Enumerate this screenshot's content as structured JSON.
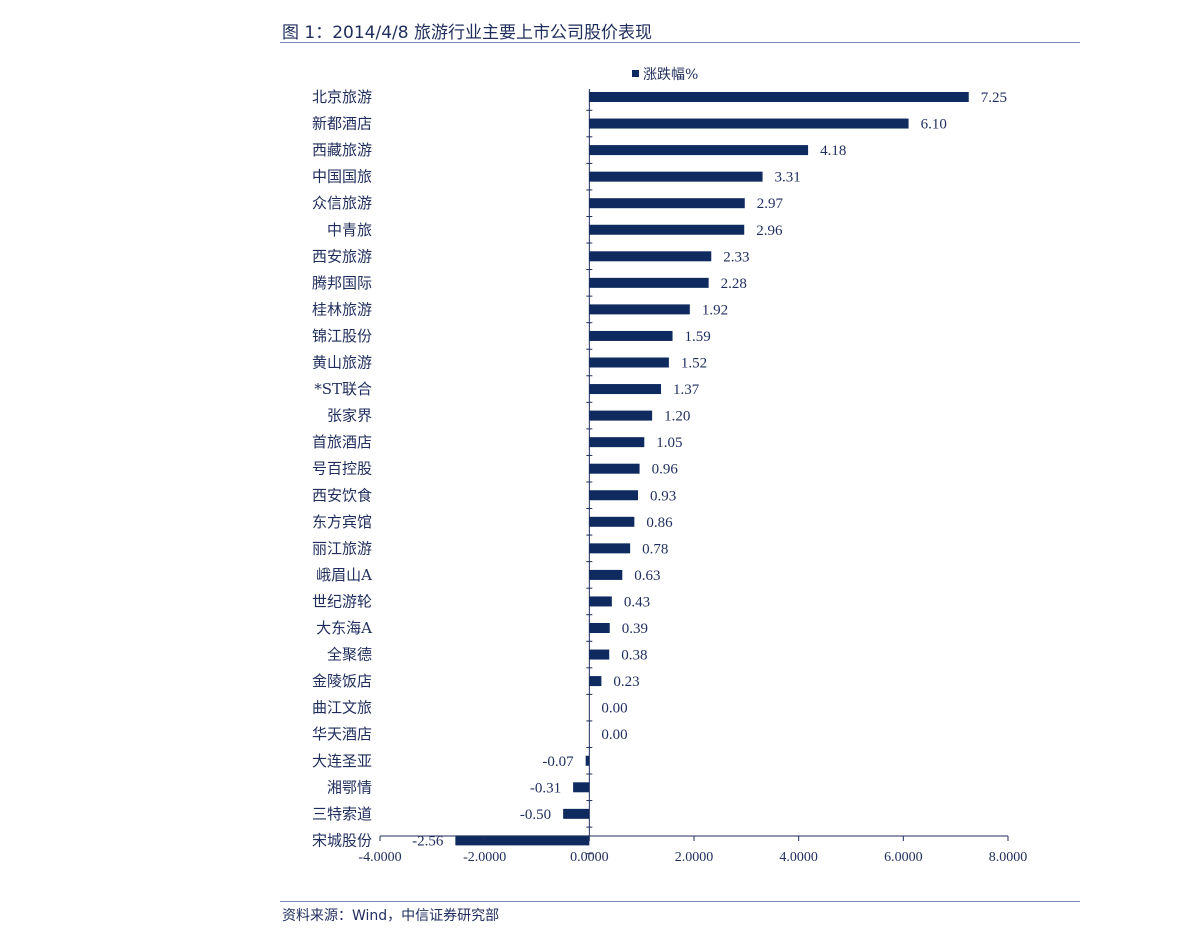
{
  "figure": {
    "title": "图 1：2014/4/8 旅游行业主要上市公司股价表现",
    "source": "资料来源：Wind，中信证券研究部"
  },
  "chart_data": {
    "type": "bar",
    "orientation": "horizontal",
    "legend": {
      "label": "涨跌幅%",
      "position": "top"
    },
    "colors": {
      "bar": "#0e2a5e",
      "text": "#1f2d5c",
      "axis": "#1f2d5c"
    },
    "xlim": [
      -4,
      8
    ],
    "xticks": [
      -4,
      -2,
      0,
      2,
      4,
      6,
      8
    ],
    "xtick_labels": [
      "-4.0000",
      "-2.0000",
      "0.0000",
      "2.0000",
      "4.0000",
      "6.0000",
      "8.0000"
    ],
    "categories": [
      "北京旅游",
      "新都酒店",
      "西藏旅游",
      "中国国旅",
      "众信旅游",
      "中青旅",
      "西安旅游",
      "腾邦国际",
      "桂林旅游",
      "锦江股份",
      "黄山旅游",
      "*ST联合",
      "张家界",
      "首旅酒店",
      "号百控股",
      "西安饮食",
      "东方宾馆",
      "丽江旅游",
      "峨眉山A",
      "世纪游轮",
      "大东海A",
      "全聚德",
      "金陵饭店",
      "曲江文旅",
      "华天酒店",
      "大连圣亚",
      "湘鄂情",
      "三特索道",
      "宋城股份"
    ],
    "series": [
      {
        "name": "涨跌幅%",
        "values": [
          7.25,
          6.1,
          4.18,
          3.31,
          2.97,
          2.96,
          2.33,
          2.28,
          1.92,
          1.59,
          1.52,
          1.37,
          1.2,
          1.05,
          0.96,
          0.93,
          0.86,
          0.78,
          0.63,
          0.43,
          0.39,
          0.38,
          0.23,
          0.0,
          0.0,
          -0.07,
          -0.31,
          -0.5,
          -2.56
        ],
        "labels": [
          "7.25",
          "6.10",
          "4.18",
          "3.31",
          "2.97",
          "2.96",
          "2.33",
          "2.28",
          "1.92",
          "1.59",
          "1.52",
          "1.37",
          "1.20",
          "1.05",
          "0.96",
          "0.93",
          "0.86",
          "0.78",
          "0.63",
          "0.43",
          "0.39",
          "0.38",
          "0.23",
          "0.00",
          "0.00",
          "-0.07",
          "-0.31",
          "-0.50",
          "-2.56"
        ]
      }
    ]
  }
}
